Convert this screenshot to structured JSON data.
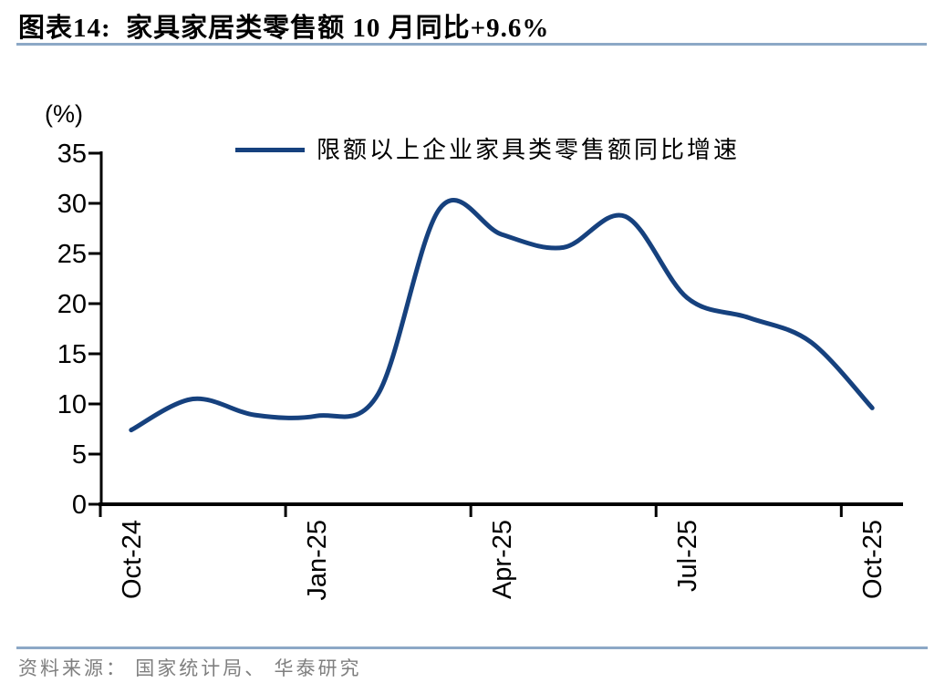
{
  "figure": {
    "title": "图表14:  家具家居类零售额 10 月同比+9.6%",
    "source_note": "资料来源： 国家统计局、 华泰研究"
  },
  "chart_data": {
    "type": "line",
    "title": "家具家居类零售额 10 月同比+9.6%",
    "ylabel": "(%)",
    "xlabel": "",
    "legend": [
      "限额以上企业家具类零售额同比增速"
    ],
    "legend_position": "top-center",
    "x": [
      "Oct-24",
      "Nov-24",
      "Dec-24",
      "Jan-25",
      "Feb-25",
      "Mar-25",
      "Apr-25",
      "May-25",
      "Jun-25",
      "Jul-25",
      "Aug-25",
      "Sep-25",
      "Oct-25"
    ],
    "series": [
      {
        "name": "限额以上企业家具类零售额同比增速",
        "values": [
          7.4,
          10.5,
          8.9,
          8.8,
          11.0,
          29.5,
          26.9,
          25.6,
          28.7,
          20.6,
          18.6,
          16.2,
          9.6
        ],
        "smooth": true
      }
    ],
    "x_tick_labels": [
      "Oct-24",
      "Jan-25",
      "Apr-25",
      "Jul-25",
      "Oct-25"
    ],
    "x_tick_every": 3,
    "y_ticks": [
      0,
      5,
      10,
      15,
      20,
      25,
      30,
      35
    ],
    "ylim": [
      0,
      35
    ],
    "grid": false
  },
  "colors": {
    "line": "#16417E",
    "rule": "#8CA8C6",
    "axis": "#000000",
    "tick_text": "#000000",
    "source_text": "#7F7F7F",
    "background": "#FFFFFF"
  }
}
